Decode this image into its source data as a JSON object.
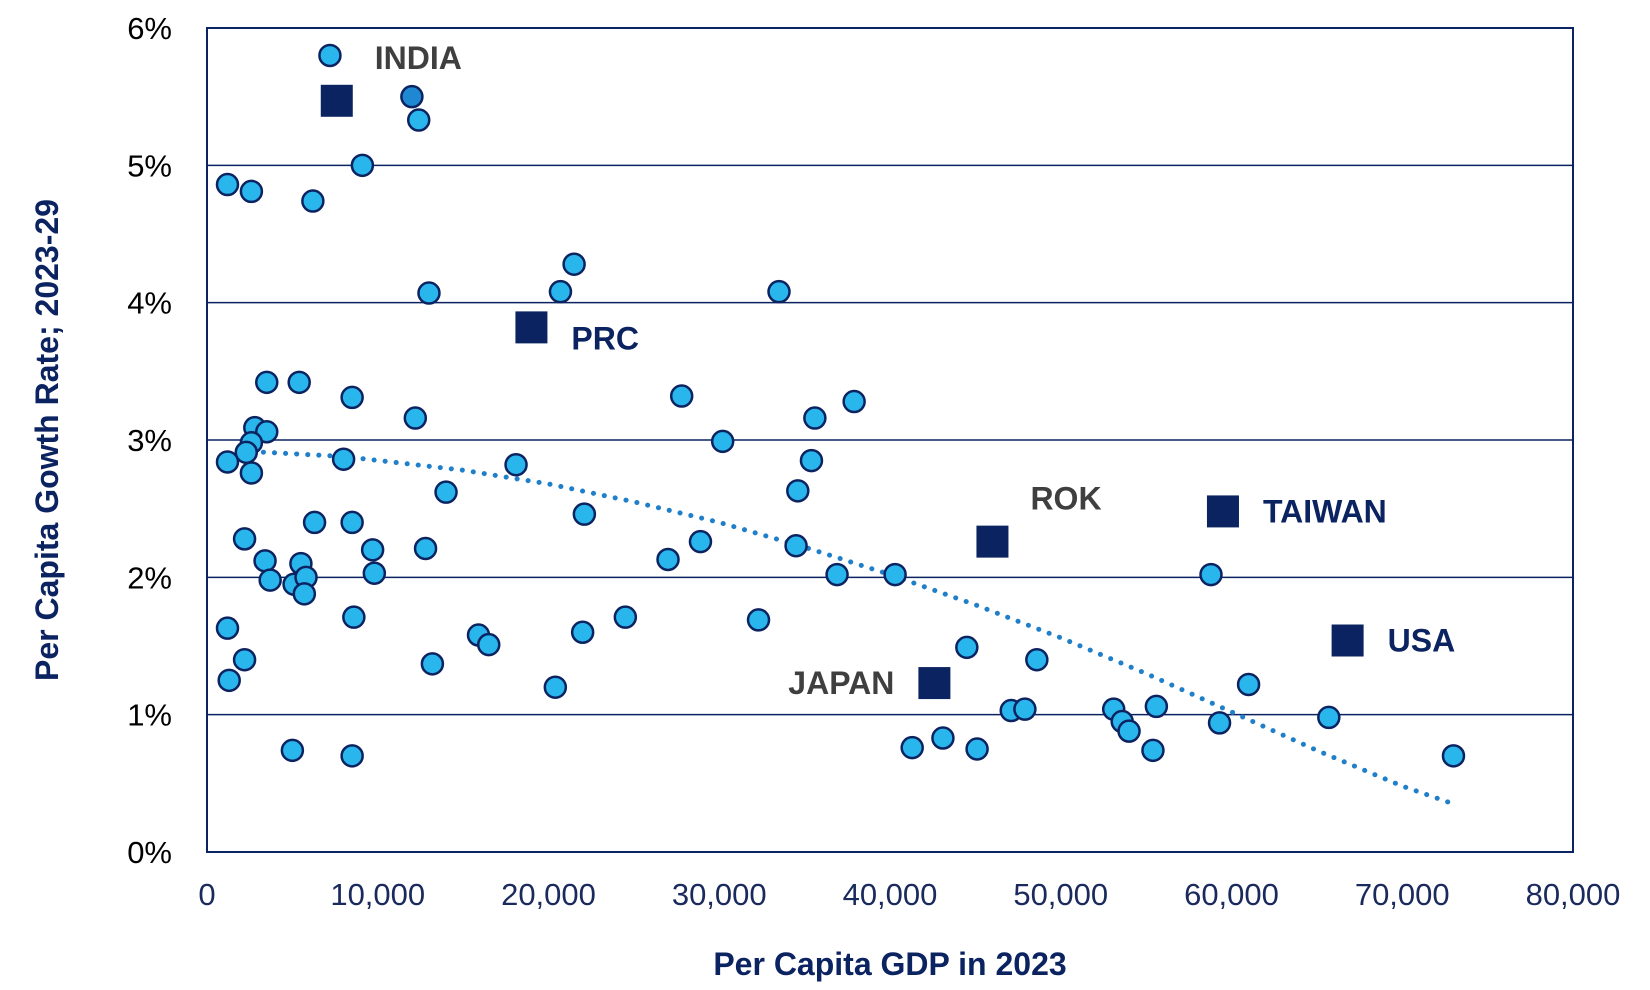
{
  "chart_data": {
    "type": "scatter",
    "title": "",
    "xlabel": "Per Capita GDP in 2023",
    "ylabel": "Per Capita Gowth Rate; 2023-29",
    "xlim": [
      0,
      80000
    ],
    "ylim": [
      0,
      6
    ],
    "x_ticks": [
      0,
      10000,
      20000,
      30000,
      40000,
      50000,
      60000,
      70000,
      80000
    ],
    "x_tick_labels": [
      "0",
      "10,000",
      "20,000",
      "30,000",
      "40,000",
      "50,000",
      "60,000",
      "70,000",
      "80,000"
    ],
    "y_ticks": [
      0,
      1,
      2,
      3,
      4,
      5,
      6
    ],
    "y_tick_labels": [
      "0%",
      "1%",
      "2%",
      "3%",
      "4%",
      "5%",
      "6%"
    ],
    "grid": "horizontal",
    "colors": {
      "circle_fill": "#29b6ec",
      "circle_fill_dark": "#1e88d2",
      "circle_stroke": "#0b2360",
      "square_fill": "#0b2360",
      "trend": "#1f7fc9",
      "axis": "#0b2360",
      "label_gray": "#3f3f3f",
      "label_navy": "#0b2360"
    },
    "series": [
      {
        "marker": "circle",
        "points": [
          [
            7200,
            5.8
          ],
          [
            12000,
            5.5
          ],
          [
            12400,
            5.33
          ],
          [
            9100,
            5.0
          ],
          [
            1200,
            4.86
          ],
          [
            2600,
            4.81
          ],
          [
            6200,
            4.74
          ],
          [
            21500,
            4.28
          ],
          [
            20700,
            4.08
          ],
          [
            13000,
            4.07
          ],
          [
            33500,
            4.08
          ],
          [
            3500,
            3.42
          ],
          [
            5400,
            3.42
          ],
          [
            8500,
            3.31
          ],
          [
            12200,
            3.16
          ],
          [
            27800,
            3.32
          ],
          [
            37900,
            3.28
          ],
          [
            35600,
            3.16
          ],
          [
            2800,
            3.09
          ],
          [
            3500,
            3.06
          ],
          [
            30200,
            2.99
          ],
          [
            2600,
            2.98
          ],
          [
            2300,
            2.91
          ],
          [
            1200,
            2.84
          ],
          [
            8000,
            2.86
          ],
          [
            18100,
            2.82
          ],
          [
            35400,
            2.85
          ],
          [
            2600,
            2.76
          ],
          [
            14000,
            2.62
          ],
          [
            34600,
            2.63
          ],
          [
            22100,
            2.46
          ],
          [
            6300,
            2.4
          ],
          [
            8500,
            2.4
          ],
          [
            2200,
            2.28
          ],
          [
            9700,
            2.2
          ],
          [
            12800,
            2.21
          ],
          [
            28900,
            2.26
          ],
          [
            34500,
            2.23
          ],
          [
            3400,
            2.12
          ],
          [
            5500,
            2.1
          ],
          [
            27000,
            2.13
          ],
          [
            3700,
            1.98
          ],
          [
            5100,
            1.95
          ],
          [
            5800,
            2.0
          ],
          [
            5700,
            1.88
          ],
          [
            9800,
            2.03
          ],
          [
            36900,
            2.02
          ],
          [
            40300,
            2.02
          ],
          [
            58800,
            2.02
          ],
          [
            8600,
            1.71
          ],
          [
            24500,
            1.71
          ],
          [
            32300,
            1.69
          ],
          [
            1200,
            1.63
          ],
          [
            15900,
            1.58
          ],
          [
            16500,
            1.51
          ],
          [
            22000,
            1.6
          ],
          [
            44500,
            1.49
          ],
          [
            2200,
            1.4
          ],
          [
            13200,
            1.37
          ],
          [
            48600,
            1.4
          ],
          [
            1300,
            1.25
          ],
          [
            20400,
            1.2
          ],
          [
            61000,
            1.22
          ],
          [
            47100,
            1.03
          ],
          [
            47900,
            1.04
          ],
          [
            53100,
            1.04
          ],
          [
            55600,
            1.06
          ],
          [
            53600,
            0.95
          ],
          [
            59300,
            0.94
          ],
          [
            65700,
            0.98
          ],
          [
            54000,
            0.88
          ],
          [
            43100,
            0.83
          ],
          [
            41300,
            0.76
          ],
          [
            45100,
            0.75
          ],
          [
            55400,
            0.74
          ],
          [
            5000,
            0.74
          ],
          [
            8500,
            0.7
          ],
          [
            73000,
            0.7
          ]
        ],
        "dark_point_index": 1
      },
      {
        "marker": "square",
        "points": [
          {
            "label": "INDIA",
            "x": 7600,
            "y": 5.47,
            "label_color": "#3f3f3f",
            "label_side": "right-up"
          },
          {
            "label": "PRC",
            "x": 19000,
            "y": 3.82,
            "label_color": "#0b2360",
            "label_side": "right-down"
          },
          {
            "label": "ROK",
            "x": 46000,
            "y": 2.26,
            "label_color": "#3f3f3f",
            "label_side": "right-up"
          },
          {
            "label": "TAIWAN",
            "x": 59500,
            "y": 2.48,
            "label_color": "#0b2360",
            "label_side": "right"
          },
          {
            "label": "USA",
            "x": 66800,
            "y": 1.54,
            "label_color": "#0b2360",
            "label_side": "right"
          },
          {
            "label": "JAPAN",
            "x": 42600,
            "y": 1.23,
            "label_color": "#3f3f3f",
            "label_side": "left"
          }
        ]
      }
    ],
    "trendline": {
      "style": "dotted",
      "points": [
        [
          2000,
          2.92
        ],
        [
          8000,
          2.88
        ],
        [
          15000,
          2.78
        ],
        [
          20000,
          2.68
        ],
        [
          25000,
          2.55
        ],
        [
          30000,
          2.4
        ],
        [
          35000,
          2.22
        ],
        [
          40000,
          2.02
        ],
        [
          45000,
          1.8
        ],
        [
          50000,
          1.56
        ],
        [
          55000,
          1.3
        ],
        [
          60000,
          1.02
        ],
        [
          65000,
          0.74
        ],
        [
          70000,
          0.48
        ],
        [
          73000,
          0.35
        ]
      ]
    }
  }
}
